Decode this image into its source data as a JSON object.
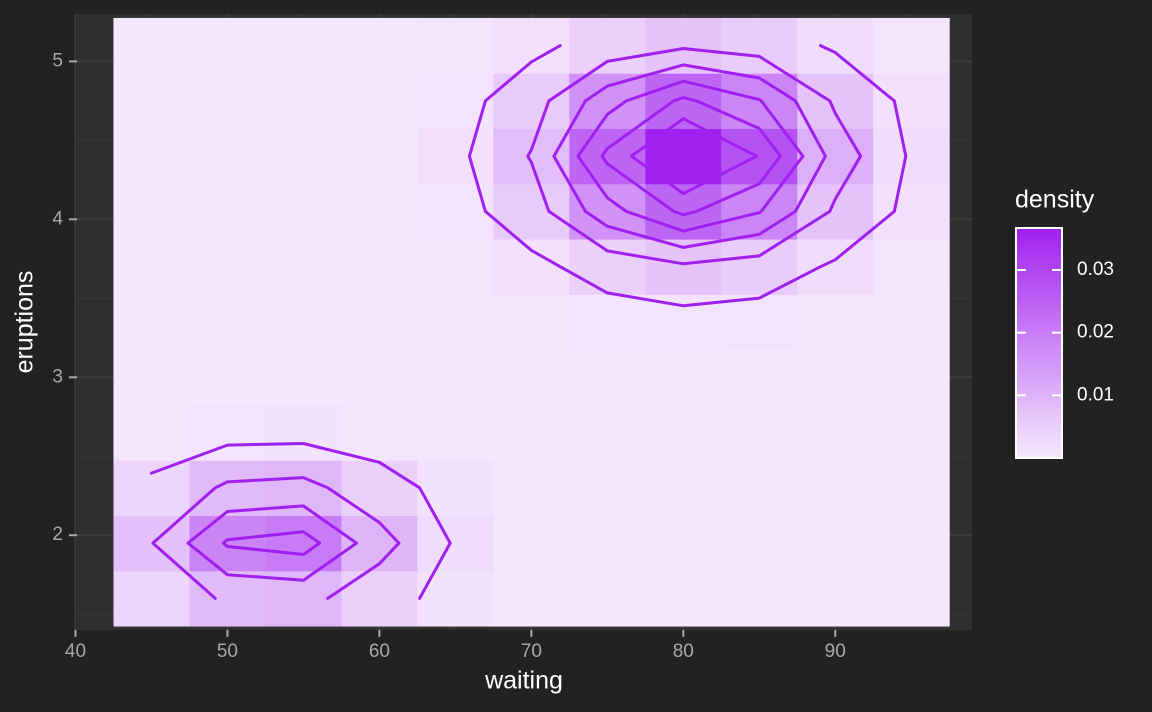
{
  "chart_data": {
    "type": "density2d",
    "x_label": "waiting",
    "y_label": "eruptions",
    "legend_title": "density",
    "xlim": [
      40.1,
      99
    ],
    "ylim": [
      1.4,
      5.3
    ],
    "xticks": [
      40,
      50,
      60,
      70,
      80,
      90
    ],
    "yticks": [
      2,
      3,
      4,
      5
    ],
    "grid": true,
    "x": [
      45,
      50,
      55,
      60,
      65,
      70,
      75,
      80,
      85,
      90,
      95
    ],
    "y": [
      1.6,
      1.95,
      2.3,
      2.65,
      3.0,
      3.35,
      3.7,
      4.05,
      4.4,
      4.75,
      5.1
    ],
    "z": [
      [
        0.0038,
        0.0088,
        0.0095,
        0.0048,
        0.0014,
        0.0006,
        0.0005,
        0.0005,
        0.0005,
        0.0005,
        0.0005
      ],
      [
        0.0078,
        0.0186,
        0.0202,
        0.0099,
        0.0025,
        0.0007,
        0.0005,
        0.0005,
        0.0005,
        0.0005,
        0.0005
      ],
      [
        0.0038,
        0.0088,
        0.0095,
        0.0048,
        0.0014,
        0.0006,
        0.0005,
        0.0005,
        0.0005,
        0.0005,
        0.0005
      ],
      [
        0.0008,
        0.0013,
        0.0014,
        0.0009,
        0.0006,
        0.0005,
        0.0005,
        0.0005,
        0.0005,
        0.0005,
        0.0005
      ],
      [
        0.0005,
        0.0005,
        0.0005,
        0.0005,
        0.0005,
        0.0005,
        0.0005,
        0.0005,
        0.0005,
        0.0005,
        0.0005
      ],
      [
        0.0005,
        0.0005,
        0.0005,
        0.0005,
        0.0005,
        0.0007,
        0.001,
        0.0013,
        0.0011,
        0.0007,
        0.0005
      ],
      [
        0.0005,
        0.0005,
        0.0005,
        0.0005,
        0.0007,
        0.0019,
        0.0048,
        0.0071,
        0.0055,
        0.0024,
        0.0009
      ],
      [
        0.0005,
        0.0005,
        0.0005,
        0.0006,
        0.0013,
        0.0056,
        0.016,
        0.024,
        0.0183,
        0.0072,
        0.0018
      ],
      [
        0.0005,
        0.0005,
        0.0005,
        0.0006,
        0.0018,
        0.0083,
        0.0241,
        0.0364,
        0.0277,
        0.0108,
        0.0024
      ],
      [
        0.0005,
        0.0005,
        0.0005,
        0.0006,
        0.0013,
        0.0056,
        0.016,
        0.024,
        0.0183,
        0.0072,
        0.0018
      ],
      [
        0.0005,
        0.0005,
        0.0005,
        0.0005,
        0.0007,
        0.0019,
        0.0048,
        0.0071,
        0.0055,
        0.0024,
        0.0009
      ]
    ],
    "contour_levels": [
      0.003,
      0.008,
      0.013,
      0.018,
      0.023,
      0.028,
      0.033
    ],
    "contour_color": "#a020f0",
    "fill_low": "#f6eafd",
    "fill_high": "#a020f0",
    "fill_lim": [
      0,
      0.0367
    ],
    "fill_ticks": [
      0.01,
      0.02,
      0.03
    ]
  }
}
